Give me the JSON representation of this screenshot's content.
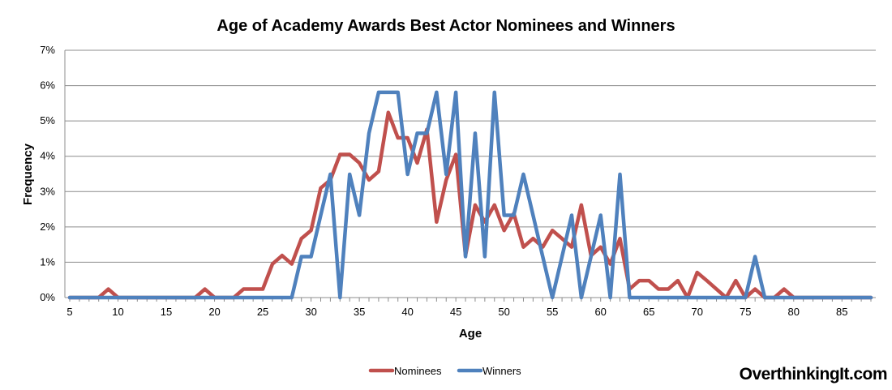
{
  "chart_data": {
    "type": "line",
    "title": "Age of Academy Awards Best Actor Nominees and Winners",
    "xlabel": "Age",
    "ylabel": "Frequency",
    "xlim": [
      5,
      88
    ],
    "ylim": [
      0,
      7
    ],
    "x_ticks": [
      5,
      10,
      15,
      20,
      25,
      30,
      35,
      40,
      45,
      50,
      55,
      60,
      65,
      70,
      75,
      80,
      85
    ],
    "y_ticks": [
      "0%",
      "1%",
      "2%",
      "3%",
      "4%",
      "5%",
      "6%",
      "7%"
    ],
    "y_unit": "%",
    "grid": "horizontal",
    "legend_position": "bottom",
    "series": [
      {
        "name": "Nominees",
        "color": "#c0504d",
        "x": [
          5,
          6,
          7,
          8,
          9,
          10,
          11,
          12,
          13,
          14,
          15,
          16,
          17,
          18,
          19,
          20,
          21,
          22,
          23,
          24,
          25,
          26,
          27,
          28,
          29,
          30,
          31,
          32,
          33,
          34,
          35,
          36,
          37,
          38,
          39,
          40,
          41,
          42,
          43,
          44,
          45,
          46,
          47,
          48,
          49,
          50,
          51,
          52,
          53,
          54,
          55,
          56,
          57,
          58,
          59,
          60,
          61,
          62,
          63,
          64,
          65,
          66,
          67,
          68,
          69,
          70,
          71,
          72,
          73,
          74,
          75,
          76,
          77,
          78,
          79,
          80,
          81,
          82,
          83,
          84,
          85,
          86,
          87,
          88
        ],
        "values": [
          0,
          0,
          0,
          0,
          0.24,
          0,
          0,
          0,
          0,
          0,
          0,
          0,
          0,
          0,
          0.24,
          0,
          0,
          0,
          0.24,
          0.24,
          0.24,
          0.95,
          1.19,
          0.95,
          1.67,
          1.9,
          3.1,
          3.33,
          4.05,
          4.05,
          3.81,
          3.33,
          3.57,
          5.24,
          4.52,
          4.52,
          3.81,
          4.76,
          2.14,
          3.33,
          4.05,
          1.19,
          2.62,
          2.14,
          2.62,
          1.9,
          2.38,
          1.43,
          1.67,
          1.43,
          1.9,
          1.67,
          1.43,
          2.62,
          1.19,
          1.43,
          0.95,
          1.67,
          0.24,
          0.48,
          0.48,
          0.24,
          0.24,
          0.48,
          0,
          0.71,
          0.48,
          0.24,
          0,
          0.48,
          0,
          0.24,
          0,
          0,
          0.24,
          0,
          0,
          0,
          0,
          0,
          0,
          0,
          0,
          0
        ]
      },
      {
        "name": "Winners",
        "color": "#4f81bd",
        "x": [
          5,
          6,
          7,
          8,
          9,
          10,
          11,
          12,
          13,
          14,
          15,
          16,
          17,
          18,
          19,
          20,
          21,
          22,
          23,
          24,
          25,
          26,
          27,
          28,
          29,
          30,
          31,
          32,
          33,
          34,
          35,
          36,
          37,
          38,
          39,
          40,
          41,
          42,
          43,
          44,
          45,
          46,
          47,
          48,
          49,
          50,
          51,
          52,
          53,
          54,
          55,
          56,
          57,
          58,
          59,
          60,
          61,
          62,
          63,
          64,
          65,
          66,
          67,
          68,
          69,
          70,
          71,
          72,
          73,
          74,
          75,
          76,
          77,
          78,
          79,
          80,
          81,
          82,
          83,
          84,
          85,
          86,
          87,
          88
        ],
        "values": [
          0,
          0,
          0,
          0,
          0,
          0,
          0,
          0,
          0,
          0,
          0,
          0,
          0,
          0,
          0,
          0,
          0,
          0,
          0,
          0,
          0,
          0,
          0,
          0,
          1.16,
          1.16,
          2.33,
          3.49,
          0,
          3.49,
          2.33,
          4.65,
          5.81,
          5.81,
          5.81,
          3.49,
          4.65,
          4.65,
          5.81,
          3.49,
          5.81,
          1.16,
          4.65,
          1.16,
          5.81,
          2.33,
          2.33,
          3.49,
          2.33,
          1.16,
          0,
          1.16,
          2.33,
          0,
          1.16,
          2.33,
          0,
          3.49,
          0,
          0,
          0,
          0,
          0,
          0,
          0,
          0,
          0,
          0,
          0,
          0,
          0,
          1.16,
          0,
          0,
          0,
          0,
          0,
          0,
          0,
          0,
          0,
          0,
          0,
          0
        ]
      }
    ]
  },
  "watermark": "OverthinkingIt.com"
}
